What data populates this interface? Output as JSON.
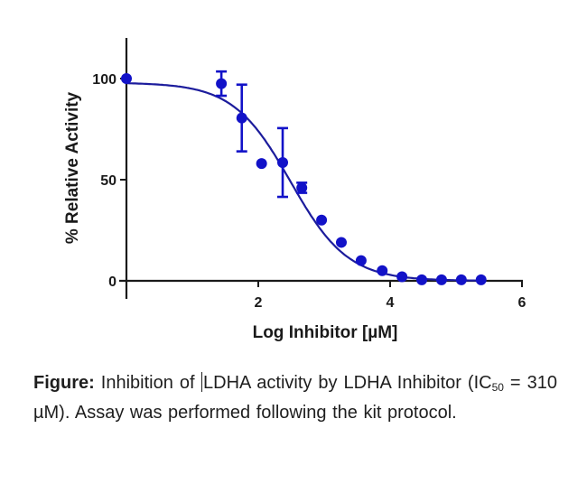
{
  "chart_data": {
    "type": "scatter",
    "subtype": "dose-response with fitted sigmoidal curve and error bars",
    "title": "",
    "xlabel": "Log Inhibitor [µM]",
    "ylabel": "% Relative Activity",
    "xlim": [
      0,
      6
    ],
    "ylim": [
      0,
      120
    ],
    "x_ticks": [
      2,
      4,
      6
    ],
    "y_ticks": [
      0,
      50,
      100
    ],
    "grid": false,
    "legend": null,
    "series": [
      {
        "name": "LDHA Inhibitor",
        "marker_color": "#1212c8",
        "points": [
          {
            "x": 0.0,
            "y": 100.0,
            "err": 0
          },
          {
            "x": 1.44,
            "y": 97.5,
            "err": 6
          },
          {
            "x": 1.75,
            "y": 80.5,
            "err": 16.5
          },
          {
            "x": 2.05,
            "y": 58.0,
            "err": 0
          },
          {
            "x": 2.37,
            "y": 58.5,
            "err": 17
          },
          {
            "x": 2.66,
            "y": 46.0,
            "err": 2.5
          },
          {
            "x": 2.96,
            "y": 30.0,
            "err": 0
          },
          {
            "x": 3.26,
            "y": 19.0,
            "err": 0
          },
          {
            "x": 3.56,
            "y": 10.0,
            "err": 0
          },
          {
            "x": 3.88,
            "y": 5.0,
            "err": 0
          },
          {
            "x": 4.18,
            "y": 2.0,
            "err": 0
          },
          {
            "x": 4.48,
            "y": 0.5,
            "err": 0
          },
          {
            "x": 4.78,
            "y": 0.5,
            "err": 0
          },
          {
            "x": 5.08,
            "y": 0.5,
            "err": 0
          },
          {
            "x": 5.38,
            "y": 0.5,
            "err": 0
          }
        ]
      }
    ],
    "fit_curve": {
      "model": "four-parameter logistic",
      "top": 98,
      "bottom": 0,
      "log_ic50": 2.49,
      "hill_slope": -1.0,
      "x_range": [
        0,
        5.38
      ],
      "line_color": "#1c1c9c"
    },
    "annotations": []
  },
  "caption": {
    "lead": "Figure:",
    "part1": " Inhibition of ",
    "part2": "LDHA activity by LDHA Inhibitor (IC",
    "subscript": "50",
    "part3": " = 310 µM). Assay was performed following the kit protocol."
  },
  "colors": {
    "axis": "#1a1a1a",
    "marker": "#1212c8",
    "curve": "#1c1c9c",
    "text": "#1e1e1e"
  }
}
